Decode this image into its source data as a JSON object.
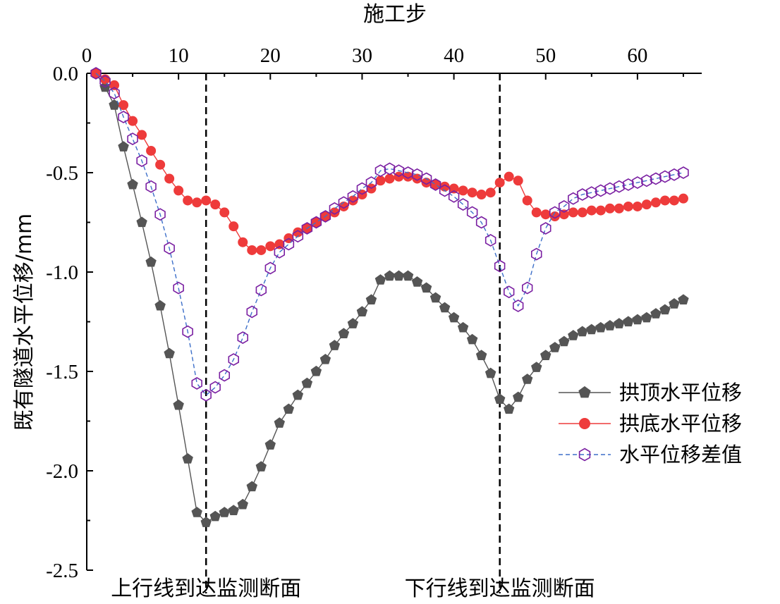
{
  "chart_data": {
    "type": "line",
    "xlabel": "施工步",
    "ylabel": "既有隧道水平位移/mm",
    "xlim": [
      0,
      67
    ],
    "ylim": [
      -2.5,
      0.0
    ],
    "x_axis_position": "top",
    "y_axis_inverted": true,
    "x_ticks": [
      0,
      10,
      20,
      30,
      40,
      50,
      60
    ],
    "x_tick_labels": [
      "0",
      "10",
      "20",
      "30",
      "40",
      "50",
      "60"
    ],
    "y_ticks": [
      0.0,
      -0.5,
      -1.0,
      -1.5,
      -2.0,
      -2.5
    ],
    "y_tick_labels": [
      "0.0",
      "-0.5",
      "-1.0",
      "-1.5",
      "-2.0",
      "-2.5"
    ],
    "grid": false,
    "legend_position": "right-middle",
    "vlines": [
      {
        "x": 13,
        "label": "上行线到达监测断面"
      },
      {
        "x": 45,
        "label": "下行线到达监测断面"
      }
    ],
    "x": [
      1,
      2,
      3,
      4,
      5,
      6,
      7,
      8,
      9,
      10,
      11,
      12,
      13,
      14,
      15,
      16,
      17,
      18,
      19,
      20,
      21,
      22,
      23,
      24,
      25,
      26,
      27,
      28,
      29,
      30,
      31,
      32,
      33,
      34,
      35,
      36,
      37,
      38,
      39,
      40,
      41,
      42,
      43,
      44,
      45,
      46,
      47,
      48,
      49,
      50,
      51,
      52,
      53,
      54,
      55,
      56,
      57,
      58,
      59,
      60,
      61,
      62,
      63,
      64,
      65
    ],
    "series": [
      {
        "name": "拱顶水平位移",
        "color": "#555555",
        "marker": "pentagon-filled",
        "line": "solid",
        "values": [
          0.0,
          -0.07,
          -0.16,
          -0.37,
          -0.56,
          -0.75,
          -0.95,
          -1.17,
          -1.41,
          -1.67,
          -1.94,
          -2.21,
          -2.26,
          -2.23,
          -2.21,
          -2.2,
          -2.17,
          -2.08,
          -1.98,
          -1.87,
          -1.76,
          -1.69,
          -1.62,
          -1.56,
          -1.5,
          -1.44,
          -1.37,
          -1.31,
          -1.26,
          -1.2,
          -1.14,
          -1.04,
          -1.02,
          -1.02,
          -1.02,
          -1.05,
          -1.08,
          -1.13,
          -1.18,
          -1.23,
          -1.28,
          -1.34,
          -1.42,
          -1.51,
          -1.64,
          -1.69,
          -1.63,
          -1.54,
          -1.48,
          -1.42,
          -1.38,
          -1.35,
          -1.32,
          -1.3,
          -1.29,
          -1.28,
          -1.27,
          -1.26,
          -1.25,
          -1.24,
          -1.23,
          -1.21,
          -1.19,
          -1.16,
          -1.14
        ]
      },
      {
        "name": "拱底水平位移",
        "color": "#ee3b3b",
        "marker": "circle-filled",
        "line": "solid",
        "values": [
          0.0,
          -0.03,
          -0.06,
          -0.16,
          -0.24,
          -0.31,
          -0.39,
          -0.46,
          -0.53,
          -0.59,
          -0.64,
          -0.65,
          -0.64,
          -0.66,
          -0.7,
          -0.77,
          -0.85,
          -0.89,
          -0.89,
          -0.87,
          -0.86,
          -0.83,
          -0.8,
          -0.78,
          -0.75,
          -0.72,
          -0.7,
          -0.67,
          -0.64,
          -0.61,
          -0.58,
          -0.54,
          -0.53,
          -0.52,
          -0.52,
          -0.53,
          -0.55,
          -0.56,
          -0.57,
          -0.58,
          -0.59,
          -0.6,
          -0.61,
          -0.6,
          -0.55,
          -0.52,
          -0.54,
          -0.64,
          -0.7,
          -0.71,
          -0.72,
          -0.71,
          -0.7,
          -0.7,
          -0.69,
          -0.69,
          -0.68,
          -0.68,
          -0.67,
          -0.67,
          -0.66,
          -0.65,
          -0.64,
          -0.64,
          -0.63
        ]
      },
      {
        "name": "水平位移差值",
        "color": "#3d6fc9",
        "marker_color": "#7a1fa2",
        "marker": "hexagon-open",
        "line": "dashed",
        "values": [
          0.0,
          -0.04,
          -0.1,
          -0.22,
          -0.33,
          -0.44,
          -0.57,
          -0.71,
          -0.88,
          -1.08,
          -1.3,
          -1.56,
          -1.62,
          -1.58,
          -1.52,
          -1.44,
          -1.33,
          -1.2,
          -1.09,
          -0.98,
          -0.9,
          -0.86,
          -0.82,
          -0.78,
          -0.75,
          -0.72,
          -0.68,
          -0.65,
          -0.62,
          -0.58,
          -0.55,
          -0.49,
          -0.48,
          -0.49,
          -0.5,
          -0.51,
          -0.53,
          -0.56,
          -0.59,
          -0.62,
          -0.66,
          -0.7,
          -0.75,
          -0.84,
          -0.97,
          -1.1,
          -1.17,
          -1.08,
          -0.91,
          -0.78,
          -0.7,
          -0.67,
          -0.63,
          -0.61,
          -0.6,
          -0.59,
          -0.58,
          -0.57,
          -0.56,
          -0.55,
          -0.54,
          -0.53,
          -0.52,
          -0.51,
          -0.5
        ]
      }
    ]
  }
}
